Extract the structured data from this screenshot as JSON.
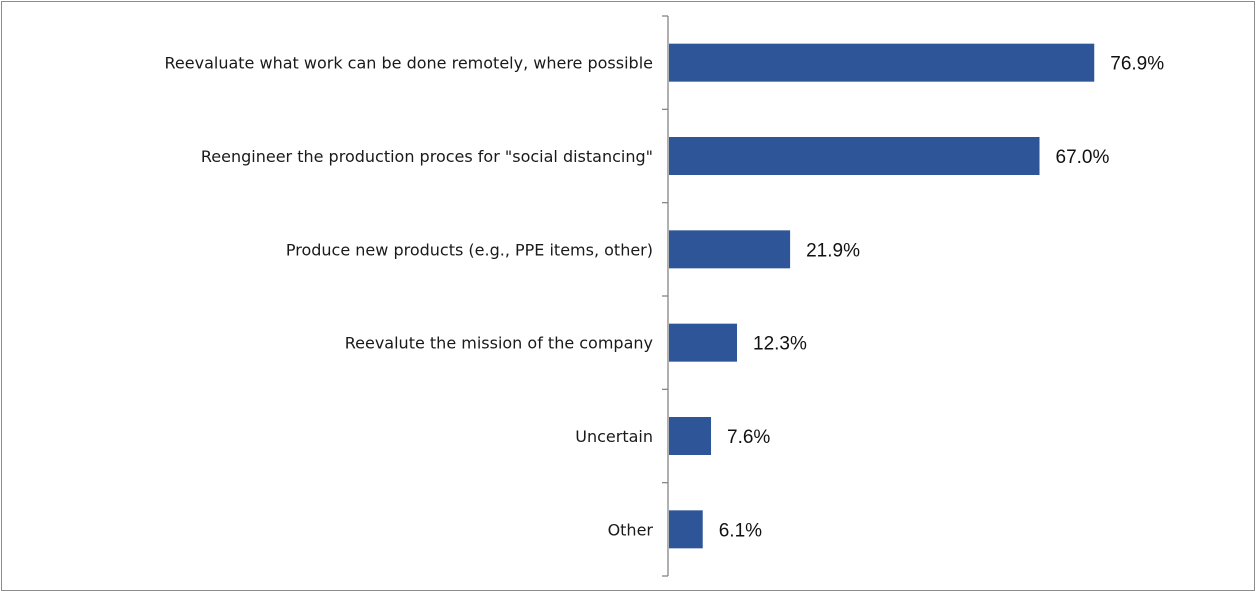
{
  "chart_data": {
    "type": "bar",
    "orientation": "horizontal",
    "title": "",
    "xlabel": "",
    "ylabel": "",
    "categories": [
      "Reevaluate what work can be done remotely, where possible",
      "Reengineer the production proces for \"social distancing\"",
      "Produce new products (e.g., PPE items, other)",
      "Reevalute the mission of the company",
      "Uncertain",
      "Other"
    ],
    "values": [
      76.9,
      67.0,
      21.9,
      12.3,
      7.6,
      6.1
    ],
    "value_labels": [
      "76.9%",
      "67.0%",
      "21.9%",
      "12.3%",
      "7.6%",
      "6.1%"
    ],
    "xlim": [
      0,
      100
    ],
    "grid": false,
    "legend": "none",
    "bar_color": "#2e5597"
  }
}
